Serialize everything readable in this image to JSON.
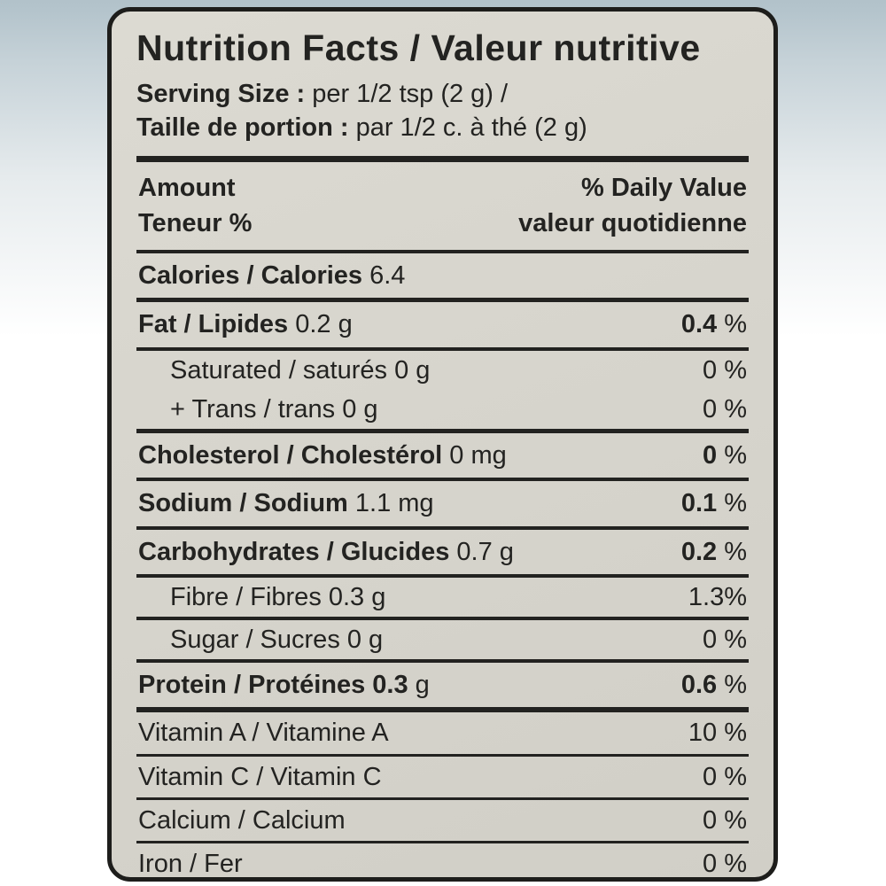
{
  "colors": {
    "label_background": "#d7d5cd",
    "border": "#1d1d1b",
    "text": "#232321",
    "top_strip": "#b2c2ca"
  },
  "label": {
    "title": "Nutrition Facts / Valeur nutritive",
    "serving_size": {
      "en_label": "Serving Size :",
      "en_value": " per 1/2 tsp (2 g)  /",
      "fr_label": "Taille de portion :",
      "fr_value": " par 1/2 c. à thé (2 g)"
    },
    "column_header": {
      "amount_en": "Amount",
      "amount_fr": "Teneur %",
      "dv_en": "% Daily Value",
      "dv_fr": "valeur quotidienne"
    },
    "calories": {
      "label_bold": "Calories / Calories",
      "value": " 6.4"
    },
    "rows": [
      {
        "id": "fat",
        "lead_bold": "Fat / Lipides",
        "lead_reg": " 0.2 g",
        "val_bold": "0.4",
        "val_reg": " %"
      },
      {
        "id": "saturated",
        "lead_bold": "",
        "lead_reg": "Saturated / saturés 0 g",
        "val_bold": "",
        "val_reg": "0 %"
      },
      {
        "id": "trans",
        "lead_bold": "",
        "lead_reg": "+ Trans / trans 0 g",
        "val_bold": "",
        "val_reg": "0 %"
      },
      {
        "id": "cholesterol",
        "lead_bold": "Cholesterol / Cholestérol",
        "lead_reg": " 0 mg",
        "val_bold": "0",
        "val_reg": " %"
      },
      {
        "id": "sodium",
        "lead_bold": "Sodium / Sodium",
        "lead_reg": " 1.1 mg",
        "val_bold": "0.1",
        "val_reg": " %"
      },
      {
        "id": "carbohydrates",
        "lead_bold": "Carbohydrates / Glucides",
        "lead_reg": " 0.7 g",
        "val_bold": "0.2",
        "val_reg": " %"
      },
      {
        "id": "fibre",
        "lead_bold": "",
        "lead_reg": "Fibre / Fibres 0.3 g",
        "val_bold": "",
        "val_reg": "1.3%"
      },
      {
        "id": "sugar",
        "lead_bold": "",
        "lead_reg": "Sugar / Sucres 0 g",
        "val_bold": "",
        "val_reg": "0 %"
      },
      {
        "id": "protein",
        "lead_bold": "Protein / Protéines 0.3",
        "lead_reg": " g",
        "val_bold": "0.6",
        "val_reg": " %"
      },
      {
        "id": "vitamin-a",
        "lead_bold": "",
        "lead_reg": "Vitamin A / Vitamine A",
        "val_bold": "",
        "val_reg": "10 %"
      },
      {
        "id": "vitamin-c",
        "lead_bold": "",
        "lead_reg": "Vitamin C / Vitamin C",
        "val_bold": "",
        "val_reg": "0 %"
      },
      {
        "id": "calcium",
        "lead_bold": "",
        "lead_reg": "Calcium / Calcium",
        "val_bold": "",
        "val_reg": "0 %"
      },
      {
        "id": "iron",
        "lead_bold": "",
        "lead_reg": "Iron / Fer",
        "val_bold": "",
        "val_reg": "0 %"
      }
    ]
  }
}
